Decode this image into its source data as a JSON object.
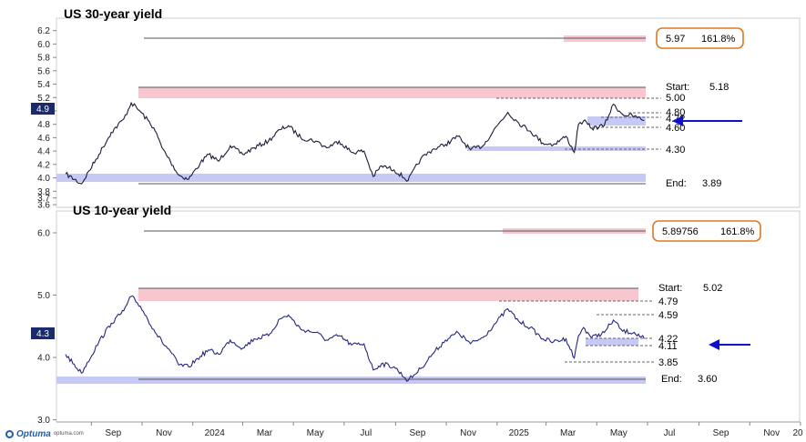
{
  "brand": {
    "name": "Optuma",
    "url": "optuma.com"
  },
  "chart_data": [
    {
      "type": "line",
      "title": "US 30-year yield",
      "ylim": [
        3.6,
        6.25
      ],
      "y_ticks": [
        "6.2",
        "6.0",
        "5.8",
        "5.6",
        "5.4",
        "5.2",
        "5.0",
        "4.8",
        "4.6",
        "4.4",
        "4.2",
        "4.0",
        "3.8",
        "3.7",
        "3.6"
      ],
      "current_value": "4.9",
      "fib_box": {
        "value": "5.97",
        "pct": "161.8%"
      },
      "start": {
        "label": "Start:",
        "value": "5.18"
      },
      "end": {
        "label": "End:",
        "value": "3.89"
      },
      "levels": [
        "5.00",
        "4.80",
        "4.72",
        "4.60",
        "4.30"
      ],
      "series": [
        {
          "x": [
            "2023-08-01",
            "2023-08-20",
            "2023-09-10",
            "2023-09-25",
            "2023-10-10",
            "2023-10-19",
            "2023-10-30",
            "2023-11-15",
            "2023-11-25",
            "2023-12-05",
            "2023-12-15",
            "2023-12-27",
            "2024-01-10",
            "2024-01-20",
            "2024-02-01",
            "2024-02-15",
            "2024-03-01",
            "2024-03-15",
            "2024-04-01",
            "2024-04-15",
            "2024-04-25",
            "2024-05-10",
            "2024-05-28",
            "2024-06-10",
            "2024-06-25",
            "2024-07-10",
            "2024-07-25",
            "2024-08-05",
            "2024-08-15",
            "2024-08-30",
            "2024-09-16",
            "2024-10-01",
            "2024-10-15",
            "2024-10-31",
            "2024-11-15",
            "2024-11-30",
            "2024-12-15",
            "2025-01-01",
            "2025-01-14",
            "2025-01-27",
            "2025-02-10",
            "2025-02-25",
            "2025-03-10",
            "2025-03-25",
            "2025-04-04",
            "2025-04-09",
            "2025-04-15",
            "2025-04-25",
            "2025-05-10",
            "2025-05-21",
            "2025-06-01",
            "2025-06-15",
            "2025-06-27"
          ],
          "values": [
            4.06,
            3.91,
            4.35,
            4.68,
            4.88,
            5.12,
            4.99,
            4.75,
            4.45,
            4.25,
            4.04,
            3.98,
            4.22,
            4.35,
            4.25,
            4.48,
            4.35,
            4.45,
            4.55,
            4.72,
            4.78,
            4.6,
            4.55,
            4.45,
            4.55,
            4.38,
            4.4,
            4.02,
            4.18,
            4.12,
            3.96,
            4.28,
            4.42,
            4.5,
            4.62,
            4.42,
            4.48,
            4.78,
            4.98,
            4.82,
            4.7,
            4.52,
            4.5,
            4.62,
            4.38,
            4.8,
            4.85,
            4.74,
            4.78,
            5.1,
            4.95,
            4.92,
            4.86
          ]
        }
      ]
    },
    {
      "type": "line",
      "title": "US 10-year yield",
      "ylim": [
        2.95,
        6.35
      ],
      "y_ticks": [
        "6.0",
        "5.0",
        "4.0",
        "3.0"
      ],
      "current_value": "4.3",
      "fib_box": {
        "value": "5.89756",
        "pct": "161.8%"
      },
      "start": {
        "label": "Start:",
        "value": "5.02"
      },
      "end": {
        "label": "End:",
        "value": "3.60"
      },
      "levels": [
        "4.79",
        "4.59",
        "4.22",
        "4.11",
        "3.85"
      ],
      "series": [
        {
          "x": [
            "2023-08-01",
            "2023-08-20",
            "2023-09-10",
            "2023-09-25",
            "2023-10-10",
            "2023-10-19",
            "2023-10-30",
            "2023-11-15",
            "2023-11-25",
            "2023-12-05",
            "2023-12-15",
            "2023-12-27",
            "2024-01-10",
            "2024-01-20",
            "2024-02-01",
            "2024-02-15",
            "2024-03-01",
            "2024-03-15",
            "2024-04-01",
            "2024-04-15",
            "2024-04-25",
            "2024-05-10",
            "2024-05-28",
            "2024-06-10",
            "2024-06-25",
            "2024-07-10",
            "2024-07-25",
            "2024-08-05",
            "2024-08-15",
            "2024-08-30",
            "2024-09-16",
            "2024-10-01",
            "2024-10-15",
            "2024-10-31",
            "2024-11-15",
            "2024-11-30",
            "2024-12-15",
            "2025-01-01",
            "2025-01-14",
            "2025-01-27",
            "2025-02-10",
            "2025-02-25",
            "2025-03-10",
            "2025-03-25",
            "2025-04-04",
            "2025-04-09",
            "2025-04-15",
            "2025-04-25",
            "2025-05-10",
            "2025-05-21",
            "2025-06-01",
            "2025-06-15",
            "2025-06-27"
          ],
          "values": [
            4.05,
            3.75,
            4.25,
            4.55,
            4.75,
            4.98,
            4.82,
            4.45,
            4.25,
            4.1,
            3.88,
            3.85,
            4.02,
            4.12,
            4.05,
            4.28,
            4.15,
            4.3,
            4.35,
            4.62,
            4.68,
            4.45,
            4.4,
            4.28,
            4.35,
            4.2,
            4.22,
            3.8,
            3.9,
            3.85,
            3.63,
            3.82,
            4.05,
            4.28,
            4.4,
            4.22,
            4.32,
            4.58,
            4.78,
            4.58,
            4.48,
            4.3,
            4.25,
            4.3,
            3.99,
            4.35,
            4.48,
            4.32,
            4.4,
            4.6,
            4.42,
            4.4,
            4.3
          ]
        }
      ]
    }
  ],
  "x_axis": {
    "domain": [
      "2023-07-21",
      "2025-12-31"
    ],
    "ticks": [
      {
        "label": "Sep",
        "date": "2023-09-01"
      },
      {
        "label": "Nov",
        "date": "2023-11-01"
      },
      {
        "label": "2024",
        "date": "2024-01-01"
      },
      {
        "label": "Mar",
        "date": "2024-03-01"
      },
      {
        "label": "May",
        "date": "2024-05-01"
      },
      {
        "label": "Jul",
        "date": "2024-07-01"
      },
      {
        "label": "Sep",
        "date": "2024-09-01"
      },
      {
        "label": "Nov",
        "date": "2024-11-01"
      },
      {
        "label": "2025",
        "date": "2025-01-01"
      },
      {
        "label": "Mar",
        "date": "2025-03-01"
      },
      {
        "label": "May",
        "date": "2025-05-01"
      },
      {
        "label": "Jul",
        "date": "2025-07-01"
      },
      {
        "label": "Sep",
        "date": "2025-09-01"
      },
      {
        "label": "Nov",
        "date": "2025-11-01"
      },
      {
        "label": "20",
        "date": "2026-01-01"
      }
    ]
  },
  "colors": {
    "line": "#1c1c3a",
    "line10": "#262680",
    "pink_zone": "#f7c6ce",
    "pink_line": "#e8a0ac",
    "blue_zone": "#c6c8f5",
    "arrow": "#1010cc",
    "fib_border": "#e07820",
    "badge": "#1a2a6a"
  }
}
